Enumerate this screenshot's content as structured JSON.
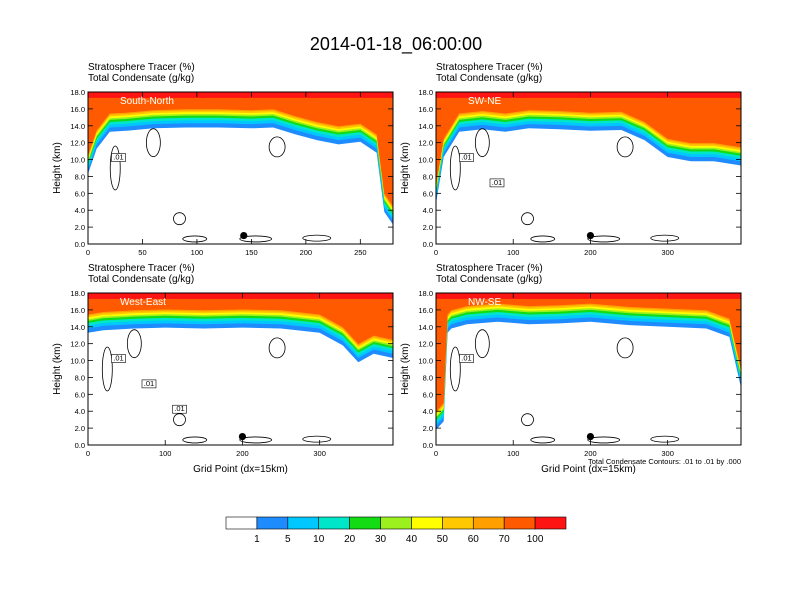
{
  "title": "2014-01-18_06:00:00",
  "colors": {
    "contour": "#000000",
    "levels": [
      "#ffffff",
      "#1e8cff",
      "#00c8ff",
      "#00e6c8",
      "#14dc14",
      "#9bf01e",
      "#ffff00",
      "#ffc800",
      "#ffa000",
      "#ff5a00",
      "#ff1414"
    ]
  },
  "chart_data": [
    {
      "type": "heatmap",
      "panel_label": "South-North",
      "header_line1": "Stratosphere Tracer   (%)",
      "header_line2": "Total Condensate   (g/kg)",
      "ylabel": "Height (km)",
      "xlabel": "",
      "xlim": [
        0,
        280
      ],
      "ylim": [
        0,
        18
      ],
      "xticks": [
        0,
        50,
        100,
        150,
        200,
        250
      ],
      "yticks": [
        "0.0",
        "2.0",
        "4.0",
        "6.0",
        "8.0",
        "10.0",
        "12.0",
        "14.0",
        "16.0",
        "18.0"
      ],
      "contour_labels": [
        ".01"
      ],
      "marker": {
        "x": 143,
        "y": 1.0
      },
      "tracer_profile": {
        "x": [
          0,
          8,
          20,
          35,
          60,
          90,
          120,
          150,
          170,
          190,
          210,
          230,
          250,
          265,
          272,
          280
        ],
        "y": [
          10.5,
          13.5,
          15.5,
          15.6,
          15.9,
          16.0,
          16.0,
          15.9,
          16.0,
          15.2,
          14.5,
          14.0,
          14.3,
          13.0,
          6.0,
          4.5
        ]
      }
    },
    {
      "type": "heatmap",
      "panel_label": "SW-NE",
      "header_line1": "Stratosphere Tracer   (%)",
      "header_line2": "Total Condensate   (g/kg)",
      "ylabel": "Height (km)",
      "xlabel": "",
      "xlim": [
        0,
        395
      ],
      "ylim": [
        0,
        18
      ],
      "xticks": [
        0,
        100,
        200,
        300
      ],
      "yticks": [
        "0.0",
        "2.0",
        "4.0",
        "6.0",
        "8.0",
        "10.0",
        "12.0",
        "14.0",
        "16.0",
        "18.0"
      ],
      "contour_labels": [
        ".01",
        ".01"
      ],
      "marker": {
        "x": 200,
        "y": 1.0
      },
      "tracer_profile": {
        "x": [
          0,
          10,
          30,
          60,
          90,
          120,
          160,
          200,
          240,
          270,
          300,
          330,
          360,
          395
        ],
        "y": [
          7.0,
          12.5,
          15.5,
          15.8,
          15.5,
          15.9,
          15.8,
          15.6,
          15.7,
          14.5,
          12.5,
          12.0,
          12.0,
          11.5
        ]
      }
    },
    {
      "type": "heatmap",
      "panel_label": "West-East",
      "header_line1": "Stratosphere Tracer   (%)",
      "header_line2": "Total Condensate   (g/kg)",
      "ylabel": "Height (km)",
      "xlabel": "Grid Point (dx=15km)",
      "xlim": [
        0,
        395
      ],
      "ylim": [
        0,
        18
      ],
      "xticks": [
        0,
        100,
        200,
        300
      ],
      "yticks": [
        "0.0",
        "2.0",
        "4.0",
        "6.0",
        "8.0",
        "10.0",
        "12.0",
        "14.0",
        "16.0",
        "18.0"
      ],
      "contour_labels": [
        ".01",
        ".01",
        ".01"
      ],
      "marker": {
        "x": 200,
        "y": 1.0
      },
      "tracer_profile": {
        "x": [
          0,
          20,
          60,
          100,
          150,
          200,
          250,
          300,
          330,
          350,
          370,
          395
        ],
        "y": [
          15.5,
          15.8,
          16.0,
          16.1,
          16.0,
          16.1,
          16.0,
          15.5,
          14.0,
          12.0,
          13.0,
          12.5
        ]
      }
    },
    {
      "type": "heatmap",
      "panel_label": "NW-SE",
      "header_line1": "Stratosphere Tracer   (%)",
      "header_line2": "Total Condensate   (g/kg)",
      "ylabel": "Height (km)",
      "xlabel": "Grid Point (dx=15km)",
      "xlim": [
        0,
        395
      ],
      "ylim": [
        0,
        18
      ],
      "xticks": [
        0,
        100,
        200,
        300
      ],
      "yticks": [
        "0.0",
        "2.0",
        "4.0",
        "6.0",
        "8.0",
        "10.0",
        "12.0",
        "14.0",
        "16.0",
        "18.0"
      ],
      "contour_labels": [
        ".01"
      ],
      "contour_note": "Total Condensate Contours: .01 to .01 by .000",
      "marker": {
        "x": 200,
        "y": 1.0
      },
      "tracer_profile": {
        "x": [
          0,
          10,
          15,
          20,
          40,
          80,
          120,
          160,
          200,
          250,
          300,
          350,
          380,
          395
        ],
        "y": [
          4.0,
          5.0,
          15.5,
          16.0,
          16.5,
          16.8,
          16.5,
          16.6,
          16.8,
          16.4,
          16.2,
          16.0,
          15.0,
          9.0
        ]
      }
    }
  ],
  "colorbar": {
    "labels": [
      "1",
      "5",
      "10",
      "20",
      "30",
      "40",
      "50",
      "60",
      "70",
      "100"
    ]
  }
}
